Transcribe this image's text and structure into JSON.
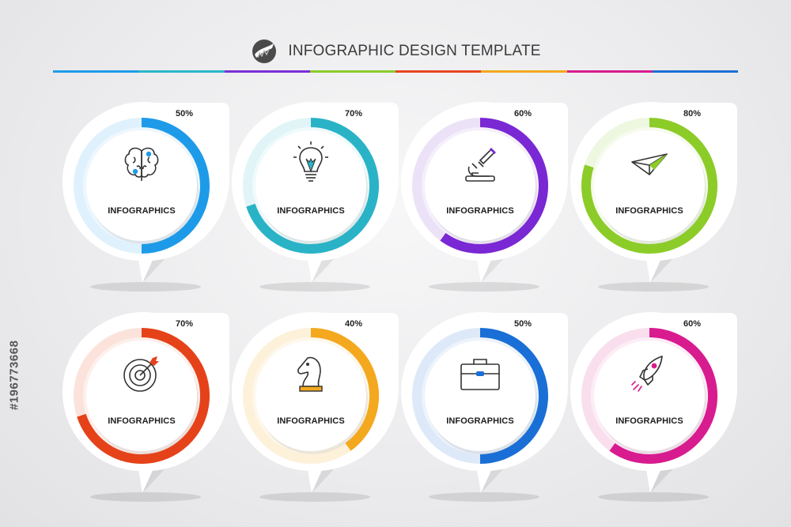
{
  "header": {
    "title": "INFOGRAPHIC DESIGN TEMPLATE",
    "logo_icon": "stock-logo-icon"
  },
  "rule_colors": [
    "#1e9be8",
    "#28b6c8",
    "#7b2fd6",
    "#8acb2a",
    "#e8451f",
    "#f3a81e",
    "#d81b8f",
    "#1a6fd6"
  ],
  "cards": [
    {
      "percent_label": "50%",
      "percent": 50,
      "label": "INFOGRAPHICS",
      "icon": "brain-icon",
      "color": "#1e9be8",
      "light": "#dff1fc"
    },
    {
      "percent_label": "70%",
      "percent": 70,
      "label": "INFOGRAPHICS",
      "icon": "light-bulb-icon",
      "color": "#2ab3c6",
      "light": "#e1f5f8"
    },
    {
      "percent_label": "60%",
      "percent": 60,
      "label": "INFOGRAPHICS",
      "icon": "microscope-icon",
      "color": "#7a27d4",
      "light": "#ece2f8"
    },
    {
      "percent_label": "80%",
      "percent": 80,
      "label": "INFOGRAPHICS",
      "icon": "paper-plane-icon",
      "color": "#8ccc28",
      "light": "#eef7e0"
    },
    {
      "percent_label": "70%",
      "percent": 70,
      "label": "INFOGRAPHICS",
      "icon": "target-icon",
      "color": "#e5421a",
      "light": "#fbe3dc"
    },
    {
      "percent_label": "40%",
      "percent": 40,
      "label": "INFOGRAPHICS",
      "icon": "chess-knight-icon",
      "color": "#f3a81e",
      "light": "#fdf1da"
    },
    {
      "percent_label": "50%",
      "percent": 50,
      "label": "INFOGRAPHICS",
      "icon": "briefcase-icon",
      "color": "#1a6fd6",
      "light": "#dde9f8"
    },
    {
      "percent_label": "60%",
      "percent": 60,
      "label": "INFOGRAPHICS",
      "icon": "rocket-icon",
      "color": "#d81b8f",
      "light": "#f9dfee"
    }
  ],
  "watermark": "#196773668"
}
